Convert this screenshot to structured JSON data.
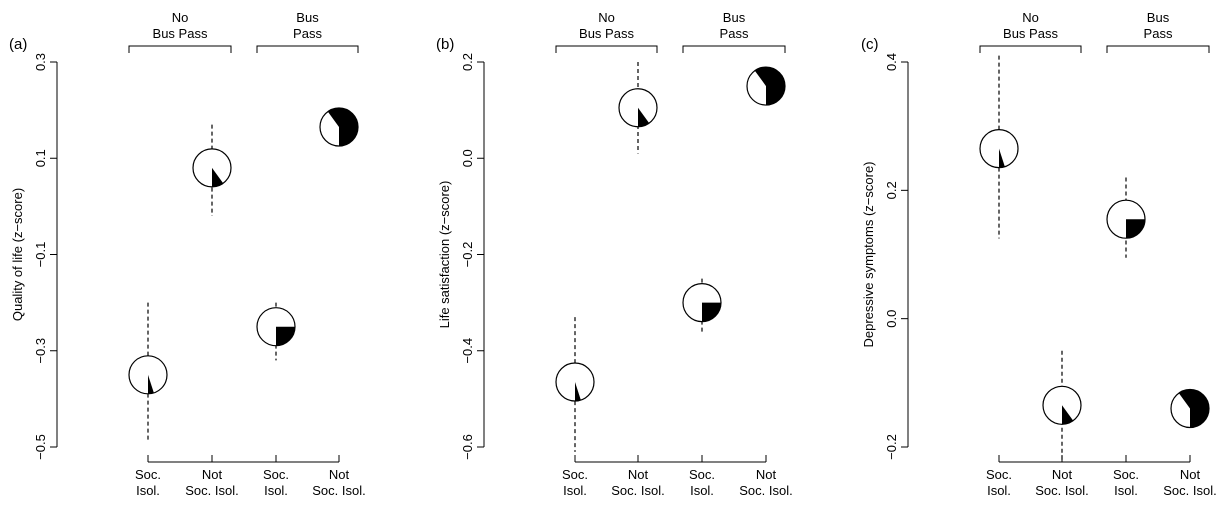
{
  "figure_colors": {
    "fill": "#000000",
    "background": "#ffffff"
  },
  "chart_data": [
    {
      "type": "scatter",
      "panel_label": "(a)",
      "title": "",
      "xlabel": "",
      "ylabel": "Quality of life (z−score)",
      "ylim": [
        -0.5,
        0.3
      ],
      "yticks": [
        0.3,
        0.1,
        -0.1,
        -0.3,
        -0.5
      ],
      "ytick_labels": [
        "0.3",
        "0.1",
        "−0.1",
        "−0.3",
        "−0.5"
      ],
      "group_brackets": [
        {
          "label_lines": [
            "No",
            "Bus Pass"
          ],
          "covers": [
            0,
            1
          ]
        },
        {
          "label_lines": [
            "Bus",
            "Pass"
          ],
          "covers": [
            2,
            3
          ]
        }
      ],
      "categories": [
        {
          "label_lines": [
            "Soc.",
            "Isol."
          ],
          "estimate": -0.35,
          "ci": [
            -0.49,
            -0.2
          ],
          "filled_share": 0.05
        },
        {
          "label_lines": [
            "Not",
            "Soc. Isol."
          ],
          "estimate": 0.08,
          "ci": [
            -0.02,
            0.17
          ],
          "filled_share": 0.1
        },
        {
          "label_lines": [
            "Soc.",
            "Isol."
          ],
          "estimate": -0.25,
          "ci": [
            -0.32,
            -0.2
          ],
          "filled_share": 0.25
        },
        {
          "label_lines": [
            "Not",
            "Soc. Isol."
          ],
          "estimate": 0.165,
          "ci": [
            0.165,
            0.165
          ],
          "filled_share": 0.6
        }
      ]
    },
    {
      "type": "scatter",
      "panel_label": "(b)",
      "title": "",
      "xlabel": "",
      "ylabel": "Life satisfaction (z−score)",
      "ylim": [
        -0.6,
        0.2
      ],
      "yticks": [
        0.2,
        0.0,
        -0.2,
        -0.4,
        -0.6
      ],
      "ytick_labels": [
        "0.2",
        "0.0",
        "−0.2",
        "−0.4",
        "−0.6"
      ],
      "group_brackets": [
        {
          "label_lines": [
            "No",
            "Bus Pass"
          ],
          "covers": [
            0,
            1
          ]
        },
        {
          "label_lines": [
            "Bus",
            "Pass"
          ],
          "covers": [
            2,
            3
          ]
        }
      ],
      "categories": [
        {
          "label_lines": [
            "Soc.",
            "Isol."
          ],
          "estimate": -0.465,
          "ci": [
            -0.61,
            -0.33
          ],
          "filled_share": 0.05
        },
        {
          "label_lines": [
            "Not",
            "Soc. Isol."
          ],
          "estimate": 0.105,
          "ci": [
            0.01,
            0.2
          ],
          "filled_share": 0.1
        },
        {
          "label_lines": [
            "Soc.",
            "Isol."
          ],
          "estimate": -0.3,
          "ci": [
            -0.365,
            -0.25
          ],
          "filled_share": 0.25
        },
        {
          "label_lines": [
            "Not",
            "Soc. Isol."
          ],
          "estimate": 0.15,
          "ci": [
            0.15,
            0.15
          ],
          "filled_share": 0.6
        }
      ]
    },
    {
      "type": "scatter",
      "panel_label": "(c)",
      "title": "",
      "xlabel": "",
      "ylabel": "Depressive symptoms (z−score)",
      "ylim": [
        -0.2,
        0.4
      ],
      "yticks": [
        0.4,
        0.2,
        0.0,
        -0.2
      ],
      "ytick_labels": [
        "0.4",
        "0.2",
        "0.0",
        "−0.2"
      ],
      "group_brackets": [
        {
          "label_lines": [
            "No",
            "Bus Pass"
          ],
          "covers": [
            0,
            1
          ]
        },
        {
          "label_lines": [
            "Bus",
            "Pass"
          ],
          "covers": [
            2,
            3
          ]
        }
      ],
      "categories": [
        {
          "label_lines": [
            "Soc.",
            "Isol."
          ],
          "estimate": 0.265,
          "ci": [
            0.125,
            0.41
          ],
          "filled_share": 0.05
        },
        {
          "label_lines": [
            "Not",
            "Soc. Isol."
          ],
          "estimate": -0.135,
          "ci": [
            -0.22,
            -0.05
          ],
          "filled_share": 0.1
        },
        {
          "label_lines": [
            "Soc.",
            "Isol."
          ],
          "estimate": 0.155,
          "ci": [
            0.095,
            0.22
          ],
          "filled_share": 0.25
        },
        {
          "label_lines": [
            "Not",
            "Soc. Isol."
          ],
          "estimate": -0.14,
          "ci": [
            -0.14,
            -0.14
          ],
          "filled_share": 0.6
        }
      ]
    }
  ]
}
